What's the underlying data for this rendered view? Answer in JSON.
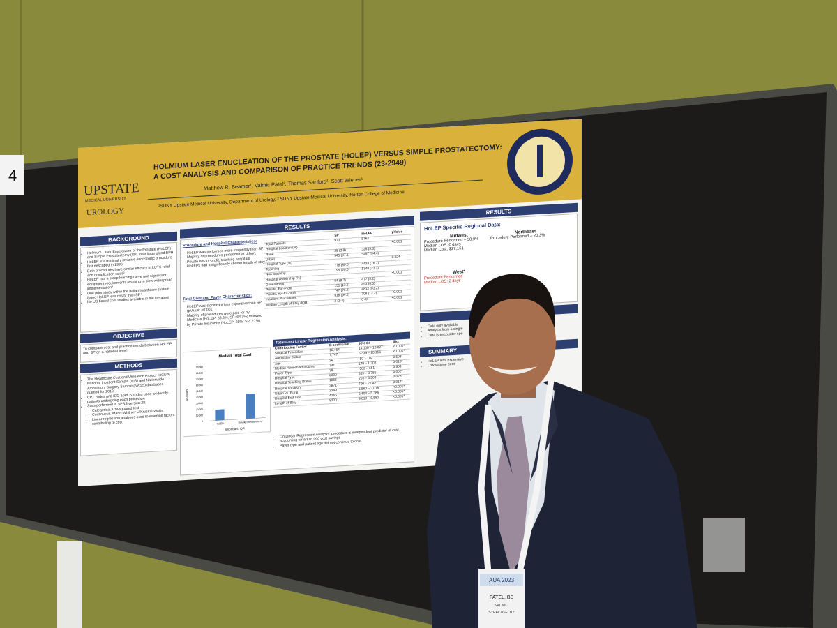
{
  "booth_number": "4",
  "poster": {
    "logo": {
      "name": "UPSTATE",
      "sub": "MEDICAL UNIVERSITY",
      "dept": "UROLOGY"
    },
    "title": "HOLMIUM LASER ENUCLEATION OF THE PROSTATE (HOLEP) VERSUS SIMPLE PROSTATECTOMY: A COST ANALYSIS AND COMPARISON OF PRACTICE TRENDS (23-2949)",
    "authors": "Matthew R. Beamer¹, Valmic Patel², Thomas Sanford¹, Scott Wiener¹",
    "affiliations": "¹SUNY Upstate Medical University, Department of Urology, ² SUNY Upstate Medical University, Norton College of Medicine",
    "background": {
      "heading": "BACKGROUND",
      "bullets": [
        "Holmium Laser Enucleation of the Prostate (HoLEP) and Simple Prostatectomy (SP) treat large gland BPH",
        "HoLEP is a minimally invasive endoscopic procedure first described in 1996¹",
        "Both procedures have similar efficacy in LUTS relief and complication rates²",
        "HoLEP has a steep learning curve and significant equipment requirements resulting in slow widespread implementation³",
        "One prior study within the Italian healthcare system found HoLEP less costly than SP⁴",
        "No US based cost studies available in the literature"
      ]
    },
    "objective": {
      "heading": "OBJECTIVE",
      "text": "To compare cost and practice trends between HoLEP and SP on a national level"
    },
    "methods": {
      "heading": "METHODS",
      "bullets": [
        "The Healthcare Cost and Utilization Project (HCUP) National Inpatient Sample (NIS) and Nationwide Ambulatory Surgery Sample (NASS) databases queried for 2018",
        "CPT codes and ICD-10PCS codes used to identify patients undergoing each procedure",
        "Stats performed in SPSS version 28:"
      ],
      "sub_bullets": [
        "Categorical: Chi-squared test",
        "Continuous: Mann-Whitney U/Kruskal-Wallis",
        "Linear regression analyses used to examine factors contributing to cost"
      ]
    },
    "results": {
      "heading": "RESULTS",
      "procedure_heading": "Procedure and Hospital Characteristics:",
      "procedure_bullets": [
        "HoLEP was performed more frequently than SP",
        "Majority of procedures performed at Urban, Private not-for-profit, teaching hospitals",
        "HoLEPs had a significantly shorter length of stay"
      ],
      "cost_heading": "Total Cost and Payer Characteristics:",
      "cost_bullets": [
        "HoLEP was significant less expensive than SP (pValue: <0.001)",
        "Majority of procedures were paid for by Medicare (HoLEP: 66.3%; SP: 64.3%) followed by Private Insurance (HoLEP: 28%; SP: 27%)"
      ],
      "table": {
        "header": [
          null,
          "SP",
          "HoLEP",
          "pValue"
        ],
        "rows": [
          [
            "Total Patients",
            "973",
            "5762",
            null
          ],
          [
            "Hospital Location (%)",
            null,
            null,
            "<0.001"
          ],
          [
            "Rural",
            "28 (2.9)",
            "325 (5.6)",
            null
          ],
          [
            "Urban",
            "945 (97.1)",
            "5457 (94.4)",
            null
          ],
          [
            "Hospital Type (%)",
            null,
            null,
            "0.024"
          ],
          [
            "Teaching",
            "778 (80.0)",
            "4434 (76.7)",
            null
          ],
          [
            "Non-teaching",
            "195 (20.0)",
            "1348 (23.3)",
            null
          ],
          [
            "Hospital Ownership (%)",
            null,
            null,
            "<0.001"
          ],
          [
            "Government",
            "94 (9.7)",
            "477 (8.2)",
            null
          ],
          [
            "Private, For-Profit",
            "131 (13.5)",
            "493 (8.5)",
            null
          ],
          [
            "Private, not-for-profit",
            "747 (76.8)",
            "4812 (83.2)",
            null
          ],
          [
            "Inpatient Procedures",
            "918 (94.3)",
            "708 (12.2)",
            "<0.001"
          ],
          [
            "Median Length of Stay (IQR)",
            "3 (2-4)",
            "0 (0)",
            "<0.001"
          ]
        ]
      },
      "regression": {
        "title": "Total Cost Linear Regression Analysis:",
        "header": [
          "Contributing Factor:",
          "B coefficient",
          "95% CI",
          "Sig."
        ],
        "rows": [
          [
            "Surgical Procedure",
            "16,464",
            "14,100 – 18,827",
            "<0.001*"
          ],
          [
            "Admission Status",
            "7,747",
            "5,339 – 10,156",
            "<0.001*"
          ],
          [
            "Age",
            "26",
            "-50 – 102",
            "0.508"
          ],
          [
            "Median Household Income",
            "741",
            "179 – 1,303",
            "0.010*"
          ],
          [
            "Payer Type",
            "39",
            "-582 – 661",
            "0.901"
          ],
          [
            "Hospital Type",
            "2300",
            "815 – 3,785",
            "0.002*"
          ],
          [
            "Hospital Teaching Status",
            "1866",
            "203 – 3,569",
            "0.028*"
          ],
          [
            "Hospital Location",
            "3871",
            "700 – 7,042",
            "0.017*"
          ],
          [
            "Urban vs. Rural",
            "2289",
            "1,560 – 3,019",
            "<0.001*"
          ],
          [
            "Hospital Bed Size",
            "4365",
            "3,404 – 5,385",
            "<0.001*"
          ],
          [
            "Length of Stay",
            "8300",
            "8,018 – 8,581",
            "<0.001*"
          ]
        ]
      },
      "chart_data": {
        "type": "bar",
        "title": "Median Total Cost",
        "y_label": "US Dollars",
        "note": "Error Bars: IQR",
        "categories": [
          "HoLEP",
          "Simple Prostatectomy"
        ],
        "values": [
          18000,
          41000
        ],
        "color": "#4a7fc1",
        "ylim": [
          0,
          90000
        ],
        "yticks": [
          0,
          {
            "value": 10000,
            "label": "10,000"
          },
          {
            "value": 20000,
            "label": "20,000"
          },
          {
            "value": 30000,
            "label": "30,000"
          },
          {
            "value": 40000,
            "label": "40,000"
          },
          {
            "value": 50000,
            "label": "50,000"
          },
          {
            "value": 60000,
            "label": "60,000"
          },
          {
            "value": 70000,
            "label": "70,000"
          },
          {
            "value": 80000,
            "label": "80,000"
          },
          {
            "value": 90000,
            "label": "90,000"
          }
        ]
      },
      "conclusion_bullets": [
        "On Linear Regression Analysis, procedure is independent predictor of cost, accounting for a $16,000 cost savings",
        "Payer type and patient age did not continue to cost"
      ]
    },
    "right": {
      "heading": "RESULTS",
      "regional_heading": "HoLEP Specific Regional Data:",
      "regions": [
        {
          "name": "Midwest",
          "lines": [
            "Procedure Performed – 38.9%",
            "Median LOS: 0 days",
            "Median Cost: $27,161"
          ]
        },
        {
          "name": "Northeast",
          "lines": [
            "Procedure Performed – 20.3%"
          ]
        },
        {
          "name": "West*",
          "lines": [
            "Procedure Performed",
            "Median LOS: 2 days"
          ]
        }
      ],
      "limitations": [
        "Data only available",
        "Analysis from a single",
        "Data is encounter spe"
      ],
      "summary_heading": "SUMMARY",
      "summary_bullets": [
        "HoLEP less expensive",
        "Low volume cent"
      ]
    }
  },
  "badge": {
    "event": "AUA 2023",
    "name": "PATEL, BS",
    "first": "VALMIC",
    "city": "SYRACUSE, NY"
  }
}
